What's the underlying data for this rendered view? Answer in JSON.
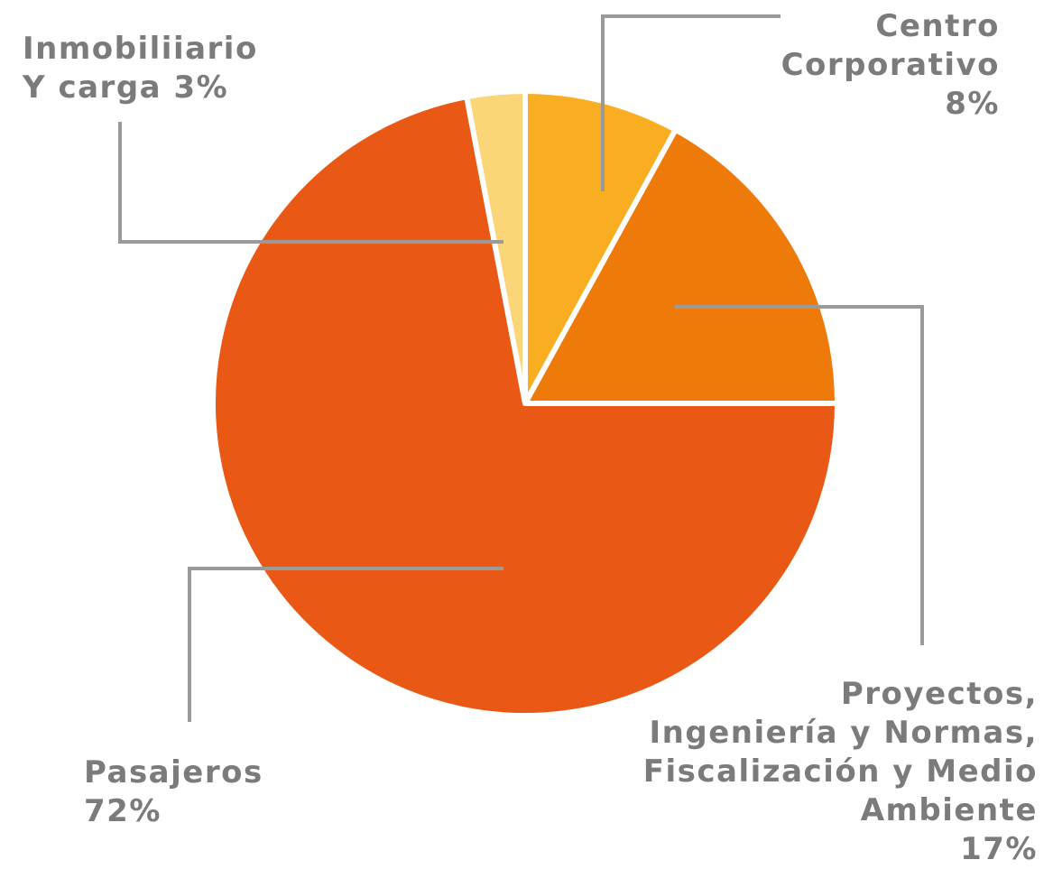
{
  "chart_data": {
    "type": "pie",
    "categories": [
      "Centro\nCorporativo",
      "Proyectos,\nIngeniería y Normas,\nFiscalización y Medio\nAmbiente",
      "Pasajeros",
      "Inmobiliiario\nY carga"
    ],
    "values": [
      8,
      17,
      72,
      3
    ],
    "value_labels": [
      "8%",
      "17%",
      "72%",
      "3%"
    ],
    "colors": [
      "#f9ae22",
      "#ee7a0a",
      "#ea5815",
      "#fad678"
    ]
  }
}
